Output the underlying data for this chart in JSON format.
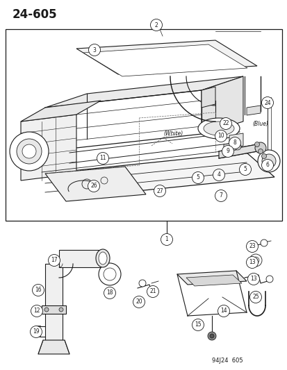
{
  "title": "24-605",
  "bg_color": "#ffffff",
  "line_color": "#1a1a1a",
  "watermark": "94J24  605",
  "title_fontsize": 13,
  "circle_r": 0.018,
  "circle_fs": 5.5
}
